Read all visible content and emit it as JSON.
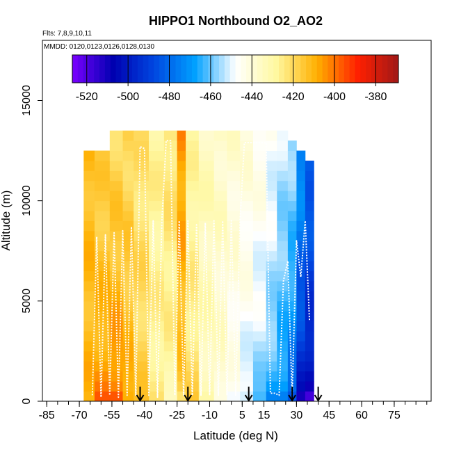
{
  "chart_data": {
    "type": "heatmap",
    "title": "HIPPO1 Northbound O2_AO2",
    "flights_label": "Flts: 7,8,9,10,11",
    "dates_label": "MMDD: 0120,0123,0126,0128,0130",
    "xlabel": "Latitude (deg N)",
    "ylabel": "Altitude (m)",
    "xlim": [
      -87,
      92
    ],
    "ylim": [
      0,
      18000
    ],
    "xticks": [
      "-85",
      "-70",
      "-55",
      "-40",
      "-25",
      "-10",
      "5",
      "15",
      "30",
      "45",
      "60",
      "75"
    ],
    "xtick_values": [
      -85,
      -70,
      -55,
      -40,
      -25,
      -10,
      5,
      15,
      30,
      45,
      60,
      75
    ],
    "yticks": [
      "0",
      "5000",
      "10000",
      "15000"
    ],
    "ytick_values": [
      0,
      5000,
      10000,
      15000
    ],
    "colorbar": {
      "min": -527,
      "max": -369,
      "ticks": [
        "-520",
        "-500",
        "-480",
        "-460",
        "-440",
        "-420",
        "-400",
        "-380"
      ],
      "tick_values": [
        -520,
        -500,
        -480,
        -460,
        -440,
        -420,
        -400,
        -380
      ],
      "colors": [
        "#7a00ff",
        "#0000b0",
        "#0046e0",
        "#00a0ff",
        "#ffffff",
        "#fff8a0",
        "#ffb000",
        "#ff2000",
        "#a01818"
      ]
    },
    "profile_columns": [
      {
        "lat_from": -68,
        "lat_to": -63,
        "top": 12500,
        "surface": -410,
        "upper": -412
      },
      {
        "lat_from": -63,
        "lat_to": -56,
        "top": 12500,
        "surface": -400,
        "upper": -418
      },
      {
        "lat_from": -56,
        "lat_to": -50,
        "top": 13500,
        "surface": -395,
        "upper": -420
      },
      {
        "lat_from": -50,
        "lat_to": -45,
        "top": 13500,
        "surface": -405,
        "upper": -420
      },
      {
        "lat_from": -45,
        "lat_to": -38,
        "top": 13500,
        "surface": -415,
        "upper": -423
      },
      {
        "lat_from": -38,
        "lat_to": -31,
        "top": 13500,
        "surface": -425,
        "upper": -428
      },
      {
        "lat_from": -31,
        "lat_to": -25,
        "top": 13500,
        "surface": -432,
        "upper": -422
      },
      {
        "lat_from": -25,
        "lat_to": -21,
        "top": 13500,
        "surface": -420,
        "upper": -405
      },
      {
        "lat_from": -21,
        "lat_to": -15,
        "top": 13500,
        "surface": -418,
        "upper": -430
      },
      {
        "lat_from": -15,
        "lat_to": -8,
        "top": 13500,
        "surface": -432,
        "upper": -434
      },
      {
        "lat_from": -8,
        "lat_to": -2,
        "top": 13500,
        "surface": -438,
        "upper": -436
      },
      {
        "lat_from": -2,
        "lat_to": 4,
        "top": 13500,
        "surface": -448,
        "upper": -438
      },
      {
        "lat_from": 4,
        "lat_to": 10,
        "top": 13500,
        "surface": -455,
        "upper": -440
      },
      {
        "lat_from": 10,
        "lat_to": 16,
        "top": 13500,
        "surface": -462,
        "upper": -442
      },
      {
        "lat_from": 16,
        "lat_to": 21,
        "top": 13500,
        "surface": -470,
        "upper": -446
      },
      {
        "lat_from": 21,
        "lat_to": 26,
        "top": 13500,
        "surface": -476,
        "upper": -452
      },
      {
        "lat_from": 26,
        "lat_to": 30,
        "top": 13000,
        "surface": -488,
        "upper": -455
      },
      {
        "lat_from": 30,
        "lat_to": 34,
        "top": 12500,
        "surface": -508,
        "upper": -470
      },
      {
        "lat_from": 34,
        "lat_to": 38,
        "top": 12000,
        "surface": -515,
        "upper": -480
      }
    ],
    "flight_track_lat": [
      -64,
      -62,
      -60,
      -58,
      -56,
      -54,
      -52,
      -50,
      -48,
      -46,
      -44,
      -42,
      -40,
      -38,
      -36,
      -34,
      -32,
      -30,
      -28,
      -26,
      -24,
      -22,
      -20,
      -18,
      -16,
      -14,
      -12,
      -10,
      -8,
      -6,
      -4,
      -2,
      0,
      2,
      4,
      6,
      8,
      10,
      12,
      14,
      16,
      18,
      20,
      22,
      24,
      26,
      28,
      30,
      32,
      34,
      36
    ],
    "flight_track_alt": [
      300,
      8200,
      200,
      8300,
      300,
      8400,
      200,
      8500,
      300,
      8700,
      300,
      12700,
      12600,
      300,
      9000,
      200,
      9000,
      13000,
      13000,
      300,
      9000,
      300,
      9000,
      300,
      8800,
      300,
      8900,
      300,
      9000,
      300,
      9000,
      300,
      9000,
      300,
      9000,
      12900,
      12900,
      12900,
      12900,
      12900,
      12900,
      400,
      400,
      300,
      6000,
      7000,
      300,
      8000,
      6200,
      9000,
      4000
    ],
    "arrows_lat": [
      -42,
      -20,
      8,
      28,
      40
    ]
  }
}
